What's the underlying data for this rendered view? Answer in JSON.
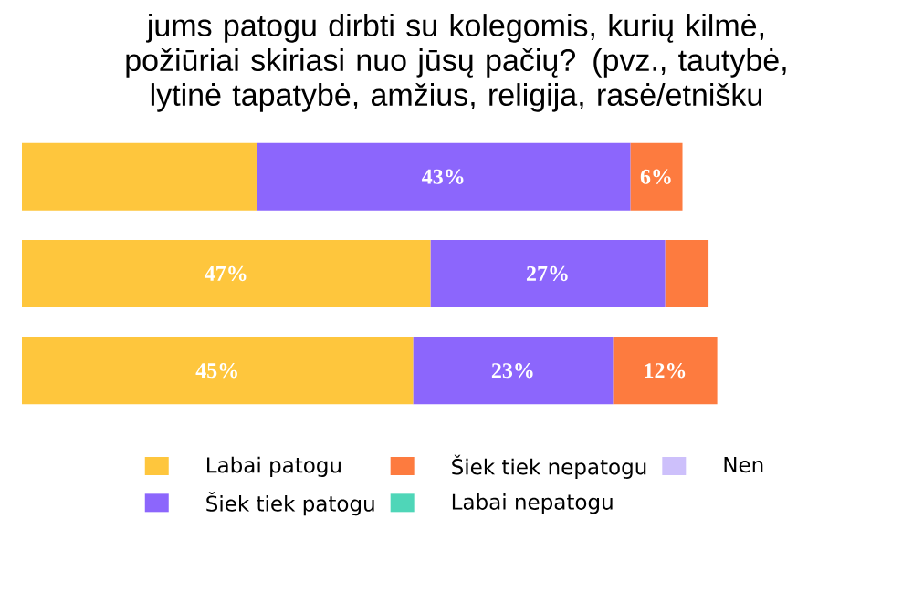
{
  "chart_data": {
    "type": "bar",
    "orientation": "horizontal",
    "stacked": true,
    "title": "jums patogu dirbti su kolegomis, kurių kilmė, požiūriai skiriasi nuo jūsų pačių? (pvz., tautybė, lytinė tapatybė, amžius, religija, rasė/etnišku",
    "categories": [
      null,
      null,
      null
    ],
    "series": [
      {
        "name": "Labai patogu",
        "color": "#fec63d",
        "values": [
          27,
          47,
          45
        ],
        "value_labels": [
          null,
          "47%",
          "45%"
        ]
      },
      {
        "name": "Šiek tiek patogu",
        "color": "#8c66fc",
        "values": [
          43,
          27,
          23
        ],
        "value_labels": [
          "43%",
          "27%",
          "23%"
        ]
      },
      {
        "name": "Šiek tiek nepatogu",
        "color": "#fd7b3f",
        "values": [
          6,
          5,
          12
        ],
        "value_labels": [
          "6%",
          null,
          "12%"
        ]
      },
      {
        "name": "Labai nepatogu",
        "color": "#4fd6b8",
        "values": [
          null,
          null,
          null
        ]
      },
      {
        "name": "Nen",
        "color": "#cdc0fb",
        "values": [
          null,
          null,
          null
        ]
      }
    ],
    "legend": "bottom"
  }
}
